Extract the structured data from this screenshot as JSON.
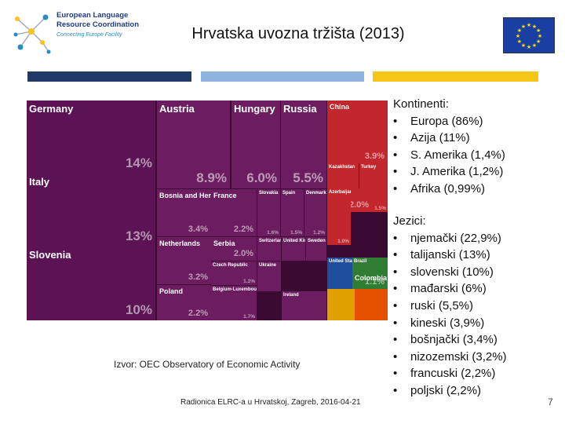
{
  "logo": {
    "line1": "European Language",
    "line2": "Resource Coordination",
    "tagline": "Connecting Europe Facility"
  },
  "slide_title": "Hrvatska uvozna tržišta (2013)",
  "colors": {
    "bar1": "#1f3a66",
    "bar2": "#8fb4de",
    "bar3": "#f5c518",
    "treemap_bg": "#3b0a33",
    "eu_blue": "#1a3fa3",
    "eu_star": "#ffdd00"
  },
  "treemap": [
    {
      "name": "Germany",
      "value": "14%",
      "color": "#5b1353"
    },
    {
      "name": "Italy",
      "value": "13%",
      "color": "#5b1353"
    },
    {
      "name": "Slovenia",
      "value": "10%",
      "color": "#5b1353"
    },
    {
      "name": "Austria",
      "value": "8.9%",
      "color": "#6b1d5f"
    },
    {
      "name": "Hungary",
      "value": "6.0%",
      "color": "#6b1d5f"
    },
    {
      "name": "Russia",
      "value": "5.5%",
      "color": "#6b1d5f"
    },
    {
      "name": "Bosnia and Herzegovina",
      "value": "3.4%",
      "color": "#6b1d5f"
    },
    {
      "name": "France",
      "value": "2.2%",
      "color": "#6b1d5f"
    },
    {
      "name": "Slovakia",
      "value": "1.6%",
      "color": "#6b1d5f"
    },
    {
      "name": "Spain",
      "value": "1.5%",
      "color": "#6b1d5f"
    },
    {
      "name": "Denmark",
      "value": "1.2%",
      "color": "#6b1d5f"
    },
    {
      "name": "Netherlands",
      "value": "3.2%",
      "color": "#6b1d5f"
    },
    {
      "name": "Serbia",
      "value": "2.0%",
      "color": "#6b1d5f"
    },
    {
      "name": "Switzerland",
      "value": "",
      "color": "#6b1d5f"
    },
    {
      "name": "United Kingdom",
      "value": "",
      "color": "#6b1d5f"
    },
    {
      "name": "Sweden",
      "value": "",
      "color": "#6b1d5f"
    },
    {
      "name": "Czech Republic",
      "value": "1.2%",
      "color": "#6b1d5f"
    },
    {
      "name": "Poland",
      "value": "2.2%",
      "color": "#6b1d5f"
    },
    {
      "name": "Belgium-Luxembourg",
      "value": "1.7%",
      "color": "#6b1d5f"
    },
    {
      "name": "Ukraine",
      "value": "",
      "color": "#6b1d5f"
    },
    {
      "name": "Ireland",
      "value": "",
      "color": "#6b1d5f"
    },
    {
      "name": "China",
      "value": "3.9%",
      "color": "#c2272d"
    },
    {
      "name": "Kazakhstan",
      "value": "",
      "color": "#c2272d"
    },
    {
      "name": "Turkey",
      "value": "",
      "color": "#c2272d"
    },
    {
      "name": "Azerbaijan",
      "value": "",
      "color": "#c2272d"
    },
    {
      "name": "",
      "value": "2.0%",
      "color": "#c2272d"
    },
    {
      "name": "",
      "value": "1.5%",
      "color": "#c2272d"
    },
    {
      "name": "",
      "value": "1.0%",
      "color": "#c2272d"
    },
    {
      "name": "United States",
      "value": "",
      "color": "#1f4e9c"
    },
    {
      "name": "Brazil",
      "value": "",
      "color": "#2e7d32"
    },
    {
      "name": "Colombia",
      "value": "1.1%",
      "color": "#2e7d32"
    },
    {
      "name": "",
      "value": "",
      "color": "#e0a100"
    },
    {
      "name": "",
      "value": "",
      "color": "#e65100"
    }
  ],
  "caption": "Izvor: OEC Observatory of Economic Activity",
  "footer": "Radionica ELRC-a u Hrvatskoj, Zagreb, 2016-04-21",
  "page_number": "7",
  "continents": {
    "heading": "Kontinenti:",
    "items": [
      "Europa (86%)",
      "Azija (11%)",
      "S. Amerika (1,4%)",
      "J. Amerika (1,2%)",
      "Afrika (0,99%)"
    ]
  },
  "languages": {
    "heading": "Jezici:",
    "items": [
      "njemački (22,9%)",
      "talijanski (13%)",
      "slovenski (10%)",
      "mađarski (6%)",
      "ruski (5,5%)",
      "kineski (3,9%)",
      "bošnjački (3,4%)",
      "nizozemski (3,2%)",
      "francuski (2,2%)",
      "poljski (2,2%)"
    ]
  }
}
